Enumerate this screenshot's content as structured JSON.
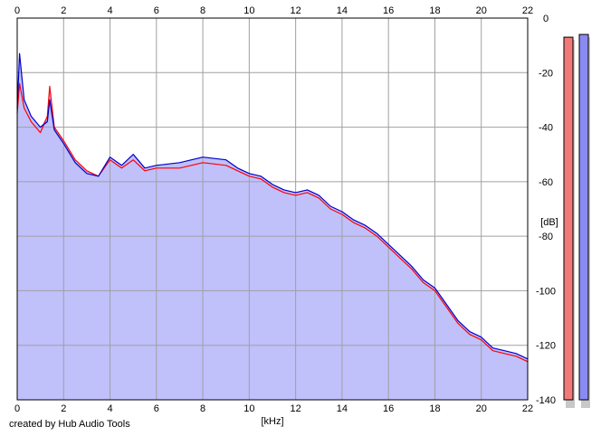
{
  "credit": "created by Hub Audio Tools",
  "colors": {
    "fill": "#c0c0fb",
    "left_channel": "#ff0000",
    "right_channel": "#0000cc",
    "grid": "#a0a0a0",
    "meter_left": "#f07a7a",
    "meter_right": "#8a8af2"
  },
  "chart_data": {
    "type": "line",
    "title": "",
    "xlabel": "[kHz]",
    "ylabel": "[dB]",
    "xlim": [
      0,
      22
    ],
    "ylim": [
      -140,
      0
    ],
    "x_ticks": [
      0,
      2,
      4,
      6,
      8,
      10,
      12,
      14,
      16,
      18,
      20,
      22
    ],
    "y_ticks": [
      0,
      -20,
      -40,
      -60,
      -80,
      -100,
      -120,
      -140
    ],
    "grid": true,
    "x_tick_position": "top and bottom",
    "y_tick_position": "right",
    "series": [
      {
        "channel": "left",
        "color": "#ff0000",
        "x": [
          0.0,
          0.1,
          0.3,
          0.6,
          1.0,
          1.3,
          1.4,
          1.6,
          2.0,
          2.5,
          3.0,
          3.5,
          4.0,
          4.5,
          5.0,
          5.5,
          6.0,
          7.0,
          8.0,
          9.0,
          9.5,
          10.0,
          10.5,
          11.0,
          11.5,
          12.0,
          12.5,
          13.0,
          13.5,
          14.0,
          14.5,
          15.0,
          15.5,
          16.0,
          16.5,
          17.0,
          17.5,
          18.0,
          18.5,
          19.0,
          19.5,
          20.0,
          20.5,
          21.0,
          21.5,
          22.0
        ],
        "y": [
          -35,
          -24,
          -33,
          -38,
          -42,
          -36,
          -25,
          -40,
          -45,
          -52,
          -56,
          -58,
          -52,
          -55,
          -52,
          -56,
          -55,
          -55,
          -53,
          -54,
          -56,
          -58,
          -59,
          -62,
          -64,
          -65,
          -64,
          -66,
          -70,
          -72,
          -75,
          -77,
          -80,
          -84,
          -88,
          -92,
          -97,
          -100,
          -106,
          -112,
          -116,
          -118,
          -122,
          -123,
          -124,
          -126
        ]
      },
      {
        "channel": "right",
        "color": "#0000cc",
        "x": [
          0.0,
          0.1,
          0.3,
          0.6,
          1.0,
          1.3,
          1.4,
          1.6,
          2.0,
          2.5,
          3.0,
          3.5,
          4.0,
          4.5,
          5.0,
          5.5,
          6.0,
          7.0,
          8.0,
          9.0,
          9.5,
          10.0,
          10.5,
          11.0,
          11.5,
          12.0,
          12.5,
          13.0,
          13.5,
          14.0,
          14.5,
          15.0,
          15.5,
          16.0,
          16.5,
          17.0,
          17.5,
          18.0,
          18.5,
          19.0,
          19.5,
          20.0,
          20.5,
          21.0,
          21.5,
          22.0
        ],
        "y": [
          -33,
          -13,
          -30,
          -36,
          -40,
          -38,
          -30,
          -41,
          -46,
          -53,
          -57,
          -58,
          -51,
          -54,
          -50,
          -55,
          -54,
          -53,
          -51,
          -52,
          -55,
          -57,
          -58,
          -61,
          -63,
          -64,
          -63,
          -65,
          -69,
          -71,
          -74,
          -76,
          -79,
          -83,
          -87,
          -91,
          -96,
          -99,
          -105,
          -111,
          -115,
          -117,
          -121,
          -122,
          -123,
          -125
        ]
      }
    ],
    "level_meters": [
      {
        "channel": "left",
        "level_db": -7
      },
      {
        "channel": "right",
        "level_db": -6
      }
    ]
  }
}
